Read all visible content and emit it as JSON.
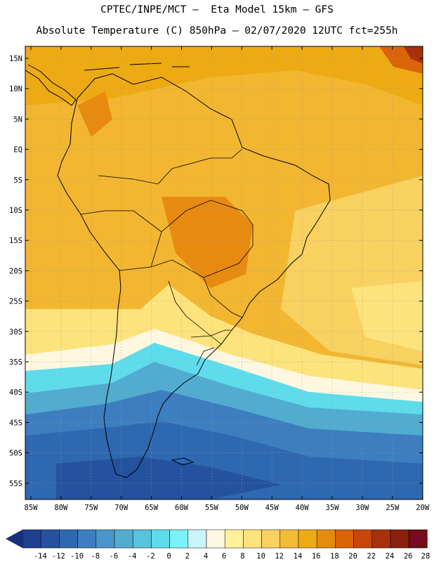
{
  "header": {
    "line1": "CPTEC/INPE/MCT –  Eta Model 15km – GFS",
    "line2": "Absolute Temperature (C) 850hPa – 02/07/2020 12UTC fct=255h"
  },
  "axes": {
    "lat_labels": [
      "15N",
      "10N",
      "5N",
      "EQ",
      "5S",
      "10S",
      "15S",
      "20S",
      "25S",
      "30S",
      "35S",
      "40S",
      "45S",
      "50S",
      "55S"
    ],
    "lon_labels": [
      "85W",
      "80W",
      "75W",
      "70W",
      "65W",
      "60W",
      "55W",
      "50W",
      "45W",
      "40W",
      "35W",
      "30W",
      "25W",
      "20W"
    ]
  },
  "colorbar": {
    "labels": [
      "-14",
      "-12",
      "-10",
      "-8",
      "-6",
      "-4",
      "-2",
      "0",
      "2",
      "4",
      "6",
      "8",
      "10",
      "12",
      "14",
      "16",
      "18",
      "20",
      "22",
      "24",
      "26",
      "28"
    ],
    "colors": [
      "#1f3f8f",
      "#25529e",
      "#2e68b0",
      "#3c7ec0",
      "#4a96cc",
      "#52accf",
      "#57c3dd",
      "#5fdceb",
      "#79f3f7",
      "#c9f4fa",
      "#fff7e0",
      "#fff09a",
      "#fde37c",
      "#f8d160",
      "#f2bc35",
      "#edaa12",
      "#e88a0f",
      "#dc6309",
      "#c9450a",
      "#a9300a",
      "#8a1f0e",
      "#6e1010"
    ],
    "low_color": "#1a2f7a",
    "high_color": "#7a0a2a"
  }
}
